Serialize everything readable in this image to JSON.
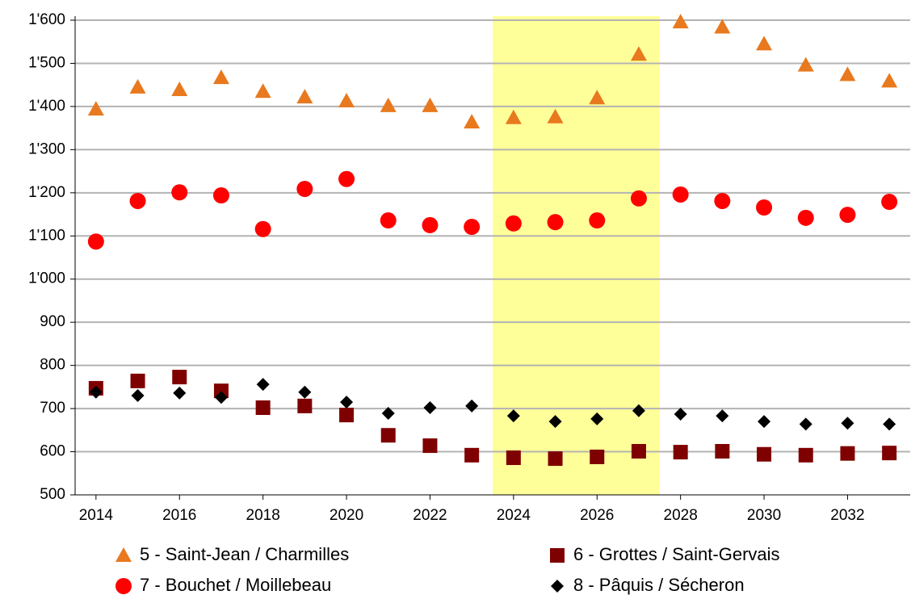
{
  "chart_data": {
    "type": "scatter",
    "x": [
      2014,
      2015,
      2016,
      2017,
      2018,
      2019,
      2020,
      2021,
      2022,
      2023,
      2024,
      2025,
      2026,
      2027,
      2028,
      2029,
      2030,
      2031,
      2032,
      2033
    ],
    "xlim": [
      2013.5,
      2033.5
    ],
    "xticks": [
      2014,
      2016,
      2018,
      2020,
      2022,
      2024,
      2026,
      2028,
      2030,
      2032
    ],
    "ylim": [
      500,
      1600
    ],
    "yticks": [
      500,
      600,
      700,
      800,
      900,
      {
        "value": 1000,
        "label": "1'000"
      },
      {
        "value": 1100,
        "label": "1'100"
      },
      {
        "value": 1200,
        "label": "1'200"
      },
      {
        "value": 1300,
        "label": "1'300"
      },
      {
        "value": 1400,
        "label": "1'400"
      },
      {
        "value": 1500,
        "label": "1'500"
      },
      {
        "value": 1600,
        "label": "1'600"
      }
    ],
    "grid": true,
    "highlight": {
      "from": 2023.5,
      "to": 2027.5,
      "color": "#ffff99"
    },
    "legend": "bottom",
    "series": [
      {
        "name": "5 - Saint-Jean / Charmilles",
        "color": "#e8791e",
        "marker": "triangle",
        "values": [
          1394,
          1445,
          1439,
          1467,
          1435,
          1422,
          1413,
          1402,
          1402,
          1364,
          1374,
          1376,
          1420,
          1521,
          1596,
          1584,
          1545,
          1496,
          1474,
          1459
        ]
      },
      {
        "name": "6 - Grottes / Saint-Gervais",
        "color": "#7f0000",
        "marker": "square",
        "values": [
          747,
          764,
          773,
          741,
          702,
          706,
          685,
          638,
          614,
          592,
          586,
          584,
          588,
          601,
          599,
          601,
          594,
          592,
          596,
          597
        ]
      },
      {
        "name": "7 - Bouchet / Moillebeau",
        "color": "#ff0000",
        "marker": "circle",
        "values": [
          1087,
          1181,
          1201,
          1194,
          1116,
          1209,
          1232,
          1136,
          1125,
          1121,
          1129,
          1132,
          1136,
          1187,
          1196,
          1181,
          1166,
          1142,
          1149,
          1179
        ]
      },
      {
        "name": "8 - Pâquis / Sécheron",
        "color": "#000000",
        "marker": "diamond",
        "values": [
          738,
          730,
          736,
          726,
          756,
          738,
          715,
          689,
          702,
          706,
          683,
          670,
          676,
          695,
          687,
          683,
          670,
          664,
          666,
          664
        ]
      }
    ]
  }
}
